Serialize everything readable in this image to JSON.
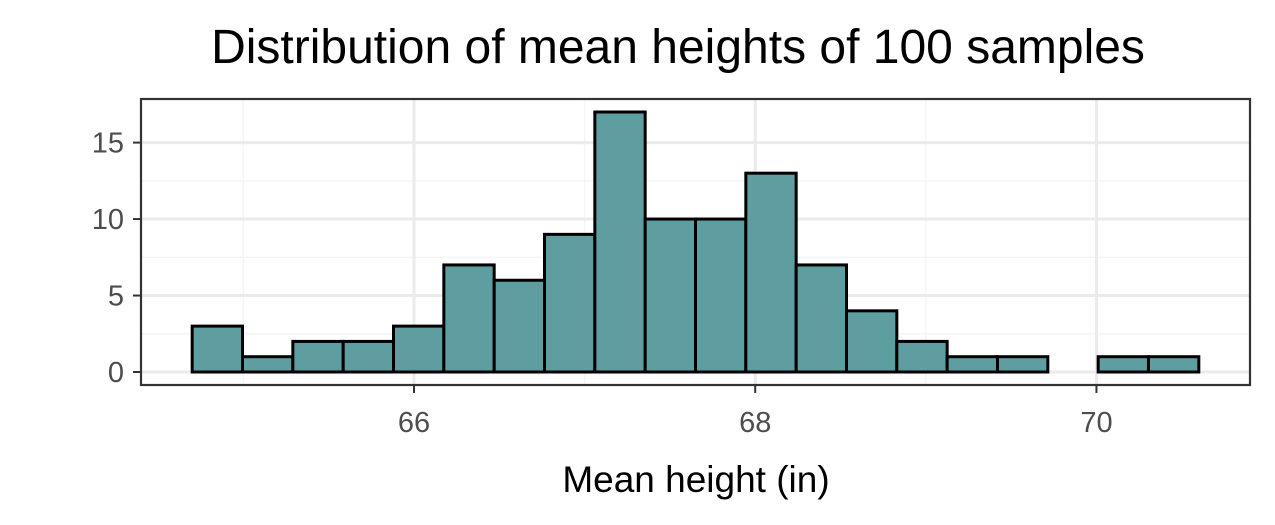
{
  "colors": {
    "bar_fill": "#5f9ea0",
    "bar_stroke": "#000000",
    "panel_border": "#333333",
    "grid_major": "#ebebeb",
    "grid_minor": "#f5f5f5",
    "tick_text": "#4d4d4d",
    "background": "#ffffff"
  },
  "chart_data": {
    "type": "bar",
    "title": "Distribution of mean heights of 100 samples",
    "xlabel": "Mean height (in)",
    "ylabel": "",
    "bin_width": 0.295,
    "bins": [
      {
        "x0": 64.7,
        "x1": 64.995,
        "count": 3
      },
      {
        "x0": 64.995,
        "x1": 65.29,
        "count": 1
      },
      {
        "x0": 65.29,
        "x1": 65.585,
        "count": 2
      },
      {
        "x0": 65.585,
        "x1": 65.88,
        "count": 2
      },
      {
        "x0": 65.88,
        "x1": 66.175,
        "count": 3
      },
      {
        "x0": 66.175,
        "x1": 66.47,
        "count": 7
      },
      {
        "x0": 66.47,
        "x1": 66.765,
        "count": 6
      },
      {
        "x0": 66.765,
        "x1": 67.06,
        "count": 9
      },
      {
        "x0": 67.06,
        "x1": 67.355,
        "count": 17
      },
      {
        "x0": 67.355,
        "x1": 67.65,
        "count": 10
      },
      {
        "x0": 67.65,
        "x1": 67.945,
        "count": 10
      },
      {
        "x0": 67.945,
        "x1": 68.24,
        "count": 13
      },
      {
        "x0": 68.24,
        "x1": 68.535,
        "count": 7
      },
      {
        "x0": 68.535,
        "x1": 68.83,
        "count": 4
      },
      {
        "x0": 68.83,
        "x1": 69.125,
        "count": 2
      },
      {
        "x0": 69.125,
        "x1": 69.42,
        "count": 1
      },
      {
        "x0": 69.42,
        "x1": 69.715,
        "count": 1
      },
      {
        "x0": 69.715,
        "x1": 70.01,
        "count": 0
      },
      {
        "x0": 70.01,
        "x1": 70.305,
        "count": 1
      },
      {
        "x0": 70.305,
        "x1": 70.6,
        "count": 1
      }
    ],
    "xlim": [
      64.4,
      70.9
    ],
    "ylim": [
      -0.85,
      17.85
    ],
    "x_ticks": [
      {
        "value": 66,
        "label": "66"
      },
      {
        "value": 68,
        "label": "68"
      },
      {
        "value": 70,
        "label": "70"
      }
    ],
    "x_minor": [
      65,
      67,
      69
    ],
    "y_ticks": [
      {
        "value": 0,
        "label": "0"
      },
      {
        "value": 5,
        "label": "5"
      },
      {
        "value": 10,
        "label": "10"
      },
      {
        "value": 15,
        "label": "15"
      }
    ],
    "y_minor": [
      2.5,
      7.5,
      12.5
    ],
    "grid": true,
    "legend": "none"
  }
}
